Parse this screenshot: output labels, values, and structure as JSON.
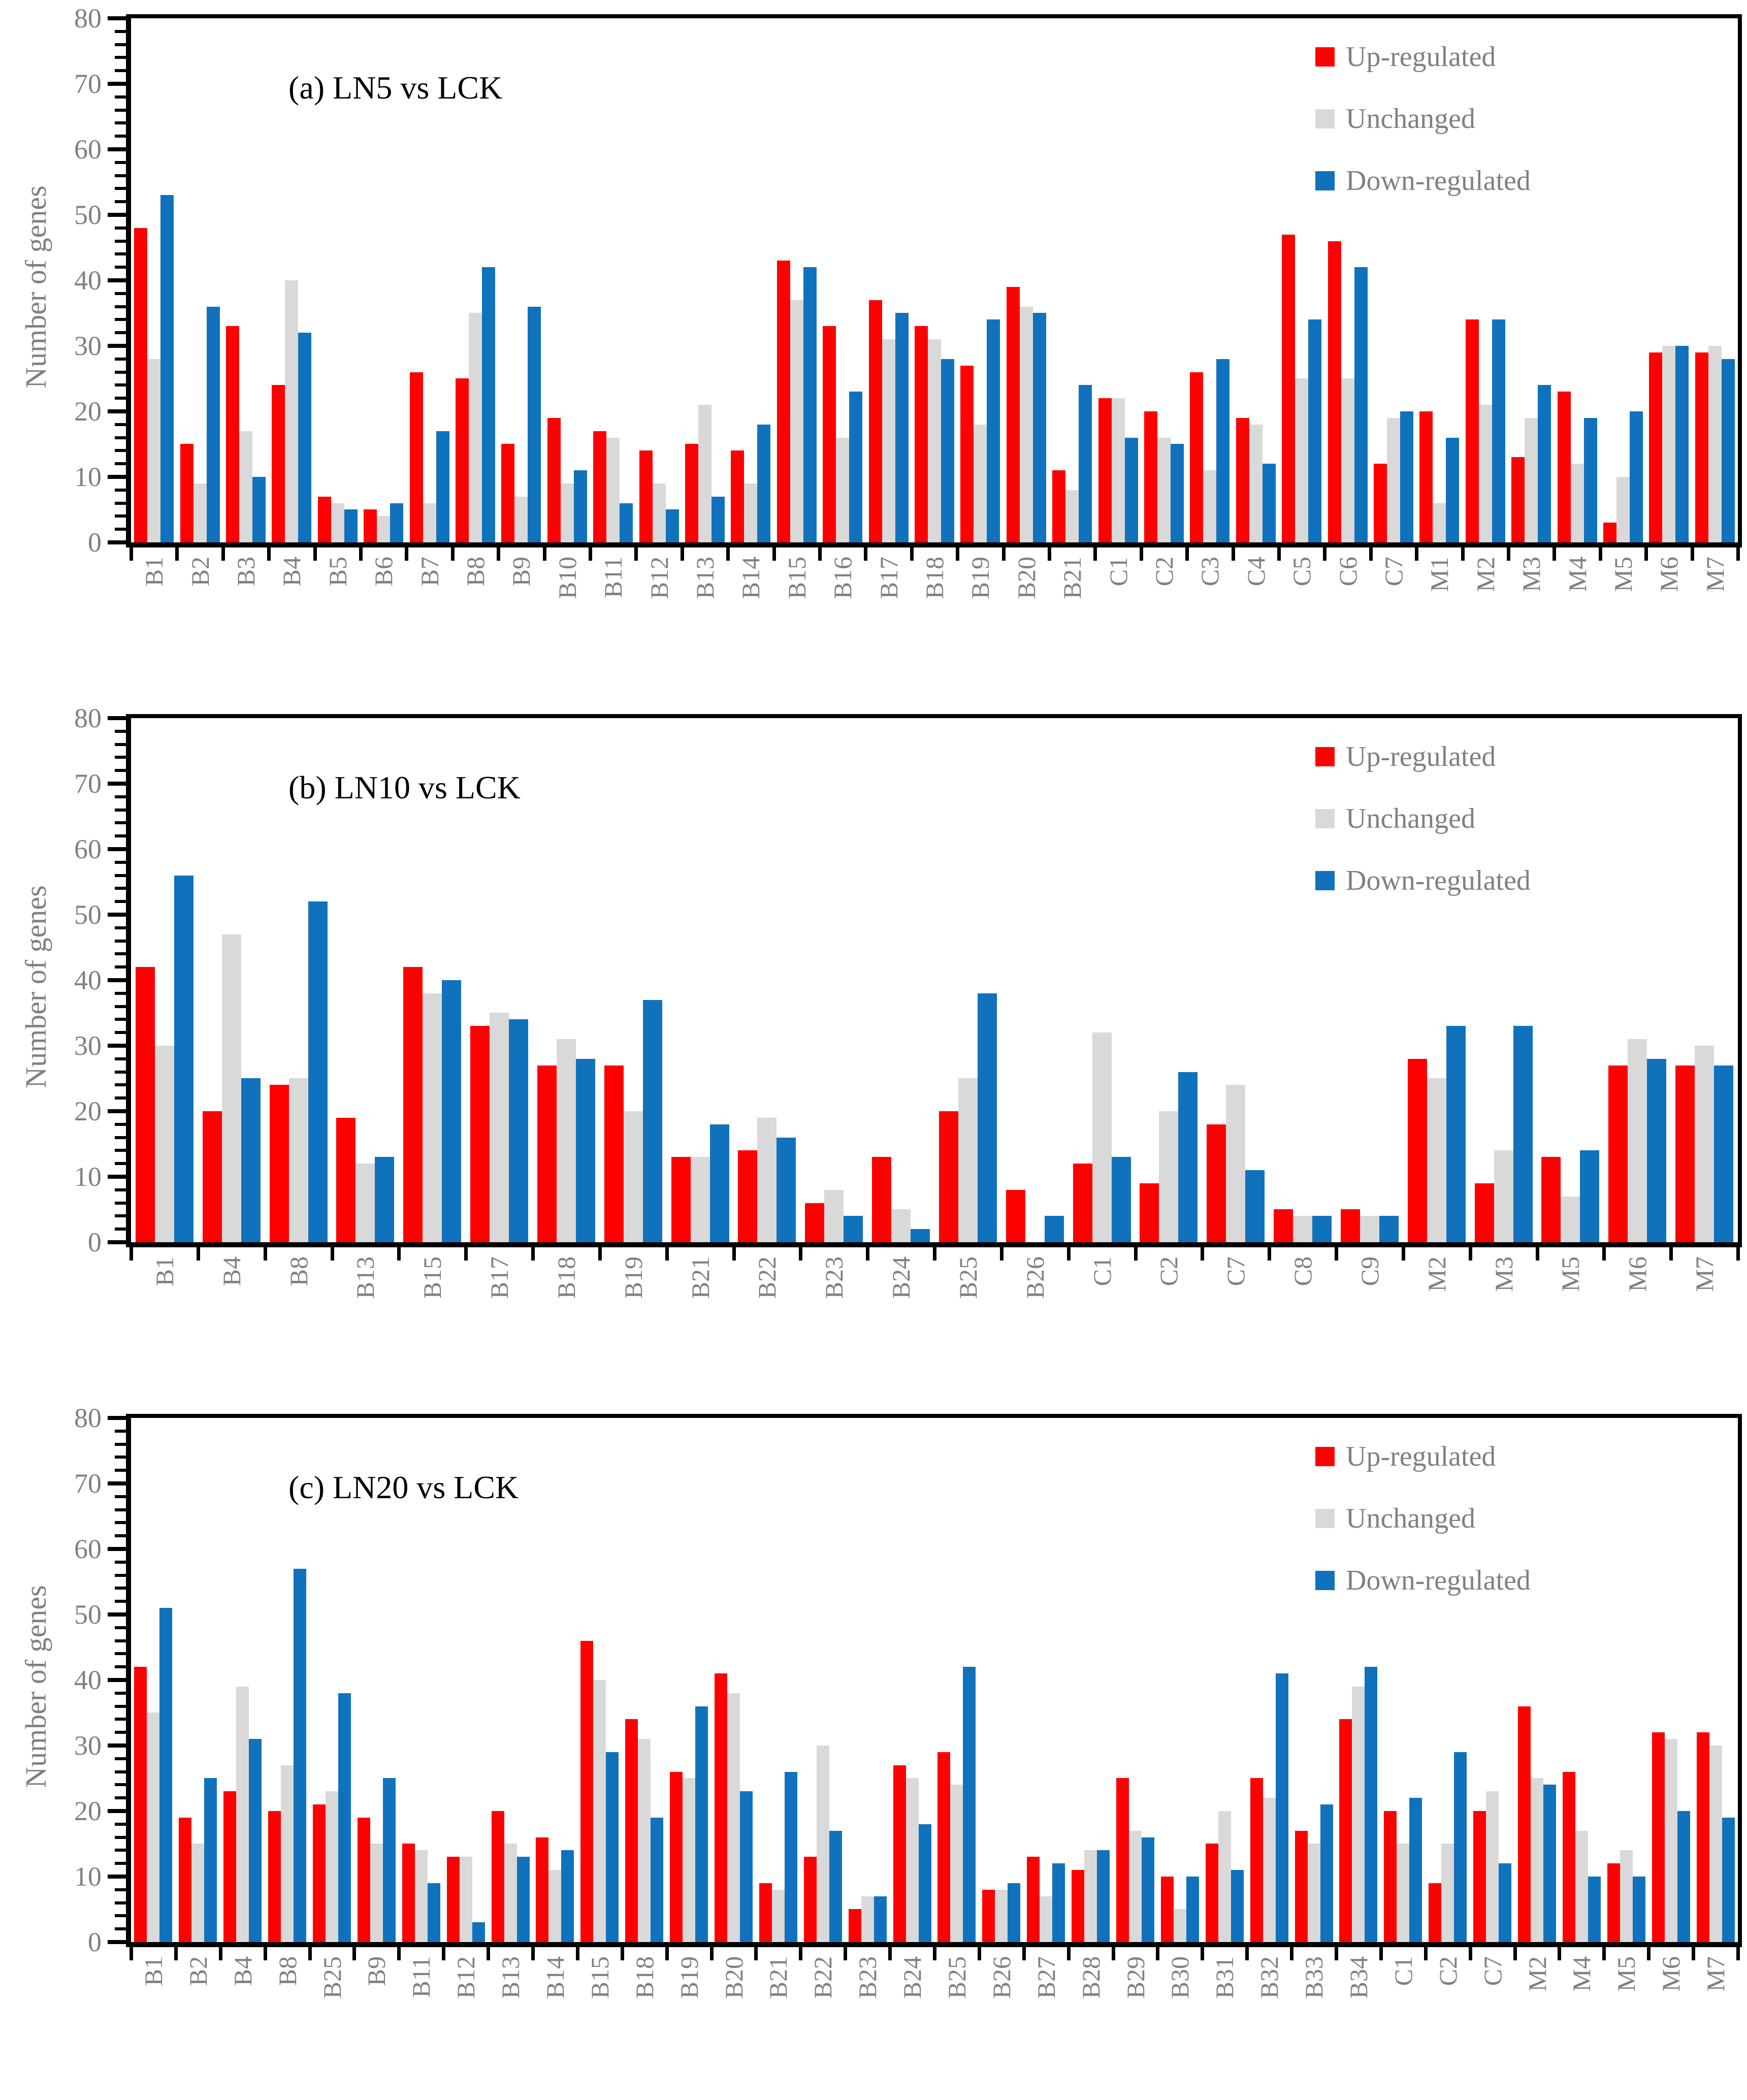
{
  "figure": {
    "background": "#ffffff",
    "axis_color": "#000000",
    "tick_label_color": "#808080",
    "legend_text_color": "#808080",
    "series_colors": {
      "up": "#ff0000",
      "unchanged": "#d9d9d9",
      "down": "#1072bc"
    }
  },
  "chart_data": [
    {
      "type": "bar",
      "title": "(a) LN5 vs LCK",
      "ylabel": "Number of genes",
      "ylim": [
        0,
        80
      ],
      "ytick_step": 10,
      "yminor_step": 2,
      "grid": false,
      "legend_position": "top-right",
      "categories": [
        "B1",
        "B2",
        "B3",
        "B4",
        "B5",
        "B6",
        "B7",
        "B8",
        "B9",
        "B10",
        "B11",
        "B12",
        "B13",
        "B14",
        "B15",
        "B16",
        "B17",
        "B18",
        "B19",
        "B20",
        "B21",
        "C1",
        "C2",
        "C3",
        "C4",
        "C5",
        "C6",
        "C7",
        "M1",
        "M2",
        "M3",
        "M4",
        "M5",
        "M6",
        "M7"
      ],
      "series": [
        {
          "name": "Up-regulated",
          "color": "#ff0000",
          "values": [
            48,
            15,
            33,
            24,
            7,
            5,
            26,
            25,
            15,
            19,
            17,
            14,
            15,
            14,
            43,
            33,
            37,
            33,
            27,
            39,
            11,
            22,
            20,
            26,
            19,
            47,
            46,
            12,
            20,
            34,
            13,
            23,
            3,
            29,
            29
          ]
        },
        {
          "name": "Unchanged",
          "color": "#d9d9d9",
          "values": [
            28,
            9,
            17,
            40,
            6,
            4,
            6,
            35,
            7,
            9,
            16,
            9,
            21,
            9,
            37,
            16,
            31,
            31,
            18,
            36,
            8,
            22,
            16,
            11,
            18,
            25,
            25,
            19,
            6,
            21,
            19,
            12,
            10,
            30,
            30
          ]
        },
        {
          "name": "Down-regulated",
          "color": "#1072bc",
          "values": [
            53,
            36,
            10,
            32,
            5,
            6,
            17,
            42,
            36,
            11,
            6,
            5,
            7,
            18,
            42,
            23,
            35,
            28,
            34,
            35,
            24,
            16,
            15,
            28,
            12,
            34,
            42,
            20,
            16,
            34,
            24,
            19,
            20,
            30,
            28
          ]
        }
      ]
    },
    {
      "type": "bar",
      "title": "(b) LN10 vs LCK",
      "ylabel": "Number of genes",
      "ylim": [
        0,
        80
      ],
      "ytick_step": 10,
      "yminor_step": 2,
      "grid": false,
      "legend_position": "top-right",
      "categories": [
        "B1",
        "B4",
        "B8",
        "B13",
        "B15",
        "B17",
        "B18",
        "B19",
        "B21",
        "B22",
        "B23",
        "B24",
        "B25",
        "B26",
        "C1",
        "C2",
        "C7",
        "C8",
        "C9",
        "M2",
        "M3",
        "M5",
        "M6",
        "M7"
      ],
      "series": [
        {
          "name": "Up-regulated",
          "color": "#ff0000",
          "values": [
            42,
            20,
            24,
            19,
            42,
            33,
            27,
            27,
            13,
            14,
            6,
            13,
            20,
            8,
            12,
            9,
            18,
            5,
            5,
            28,
            9,
            13,
            27,
            27
          ]
        },
        {
          "name": "Unchanged",
          "color": "#d9d9d9",
          "values": [
            30,
            47,
            25,
            12,
            38,
            35,
            31,
            20,
            13,
            19,
            8,
            5,
            25,
            0,
            32,
            20,
            24,
            4,
            4,
            25,
            14,
            7,
            31,
            30
          ]
        },
        {
          "name": "Down-regulated",
          "color": "#1072bc",
          "values": [
            56,
            25,
            52,
            13,
            40,
            34,
            28,
            37,
            18,
            16,
            4,
            2,
            38,
            4,
            13,
            26,
            11,
            4,
            4,
            33,
            33,
            14,
            28,
            27
          ]
        }
      ]
    },
    {
      "type": "bar",
      "title": "(c) LN20 vs LCK",
      "ylabel": "Number of genes",
      "ylim": [
        0,
        80
      ],
      "ytick_step": 10,
      "yminor_step": 2,
      "grid": false,
      "legend_position": "top-right",
      "categories": [
        "B1",
        "B2",
        "B4",
        "B8",
        "B25",
        "B9",
        "B11",
        "B12",
        "B13",
        "B14",
        "B15",
        "B18",
        "B19",
        "B20",
        "B21",
        "B22",
        "B23",
        "B24",
        "B25",
        "B26",
        "B27",
        "B28",
        "B29",
        "B30",
        "B31",
        "B32",
        "B33",
        "B34",
        "C1",
        "C2",
        "C7",
        "M2",
        "M4",
        "M5",
        "M6",
        "M7"
      ],
      "series": [
        {
          "name": "Up-regulated",
          "color": "#ff0000",
          "values": [
            42,
            19,
            23,
            20,
            21,
            19,
            15,
            13,
            20,
            16,
            46,
            34,
            26,
            41,
            9,
            13,
            5,
            27,
            29,
            8,
            13,
            11,
            25,
            10,
            15,
            25,
            17,
            34,
            20,
            9,
            20,
            36,
            26,
            12,
            32,
            32
          ]
        },
        {
          "name": "Unchanged",
          "color": "#d9d9d9",
          "values": [
            35,
            15,
            39,
            27,
            23,
            15,
            14,
            13,
            15,
            11,
            40,
            31,
            25,
            38,
            8,
            30,
            7,
            25,
            24,
            8,
            7,
            14,
            17,
            5,
            20,
            22,
            15,
            39,
            15,
            15,
            23,
            25,
            17,
            14,
            31,
            30
          ]
        },
        {
          "name": "Down-regulated",
          "color": "#1072bc",
          "values": [
            51,
            25,
            31,
            57,
            38,
            25,
            9,
            3,
            13,
            14,
            29,
            19,
            36,
            23,
            26,
            17,
            7,
            18,
            42,
            9,
            12,
            14,
            16,
            10,
            11,
            41,
            21,
            42,
            22,
            29,
            12,
            24,
            10,
            10,
            20,
            19
          ]
        }
      ]
    }
  ]
}
